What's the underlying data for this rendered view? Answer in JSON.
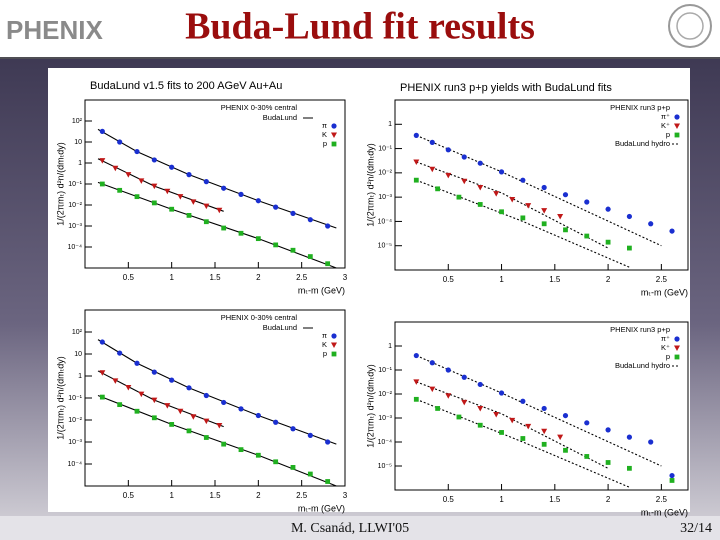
{
  "header": {
    "title": "Buda-Lund fit results",
    "logo": "PHENIX"
  },
  "footer": {
    "author": "M. Csanád, LLWI'05",
    "page": "32/14"
  },
  "chart_data": [
    {
      "type": "scatter",
      "title": "BudaLund v1.5 fits to 200 AGeV Au+Au",
      "x_label": "mₜ-m (GeV)",
      "y_label": "1/(2πmₜ) d²n/(dmₜdy)",
      "log_y": true,
      "xlim": [
        0,
        3
      ],
      "xticks": [
        0.5,
        1,
        1.5,
        2,
        2.5,
        3
      ],
      "ylim": [
        1e-05,
        1000
      ],
      "yticks": [
        {
          "value": 0.0001,
          "label": "10⁻⁴"
        },
        {
          "value": 0.001,
          "label": "10⁻³"
        },
        {
          "value": 0.01,
          "label": "10⁻²"
        },
        {
          "value": 0.1,
          "label": "10⁻¹"
        },
        1,
        10,
        {
          "value": 100,
          "label": "10²"
        }
      ],
      "legend_title": "PHENIX 0-30% central",
      "fit_name": "BudaLund",
      "fit_dashed": false,
      "series": [
        {
          "name": "π",
          "color": "#1a2fd0",
          "marker": "circle",
          "x": [
            0.2,
            0.4,
            0.6,
            0.8,
            1.0,
            1.2,
            1.4,
            1.6,
            1.8,
            2.0,
            2.2,
            2.4,
            2.6,
            2.8
          ],
          "values": [
            32,
            10,
            3.5,
            1.4,
            0.63,
            0.28,
            0.13,
            0.063,
            0.032,
            0.016,
            0.0079,
            0.004,
            0.002,
            0.001
          ]
        },
        {
          "name": "K",
          "color": "#c01818",
          "marker": "triangle-down",
          "x": [
            0.2,
            0.35,
            0.5,
            0.65,
            0.8,
            0.95,
            1.1,
            1.25,
            1.4,
            1.55
          ],
          "values": [
            1.3,
            0.56,
            0.28,
            0.14,
            0.079,
            0.045,
            0.025,
            0.014,
            0.0089,
            0.0056
          ]
        },
        {
          "name": "p",
          "color": "#20b020",
          "marker": "square",
          "x": [
            0.2,
            0.4,
            0.6,
            0.8,
            1.0,
            1.2,
            1.4,
            1.6,
            1.8,
            2.0,
            2.2,
            2.4,
            2.6,
            2.8
          ],
          "values": [
            0.1,
            0.05,
            0.025,
            0.0126,
            0.0063,
            0.0032,
            0.0016,
            0.0008,
            0.00045,
            0.00025,
            0.000126,
            7e-05,
            3.5e-05,
            1.6e-05
          ]
        }
      ],
      "fits": [
        {
          "x": [
            0.15,
            0.6,
            1.2,
            2.0,
            2.9
          ],
          "values": [
            40,
            3.5,
            0.28,
            0.016,
            0.0008
          ]
        },
        {
          "x": [
            0.15,
            0.8,
            1.6
          ],
          "values": [
            1.6,
            0.079,
            0.005
          ]
        },
        {
          "x": [
            0.15,
            1.0,
            2.0,
            2.9
          ],
          "values": [
            0.12,
            0.0063,
            0.00025,
            1e-05
          ]
        }
      ]
    },
    {
      "type": "scatter",
      "title": "PHENIX run3 p+p yields with BudaLund fits",
      "x_label": "mₜ-m (GeV)",
      "y_label": "1/(2πmₜ) d²n/(dmₜdy)",
      "log_y": true,
      "xlim": [
        0,
        2.75
      ],
      "xticks": [
        0.5,
        1,
        1.5,
        2,
        2.5
      ],
      "ylim": [
        1e-06,
        10
      ],
      "yticks": [
        {
          "value": 1e-05,
          "label": "10⁻⁵"
        },
        {
          "value": 0.0001,
          "label": "10⁻⁴"
        },
        {
          "value": 0.001,
          "label": "10⁻³"
        },
        {
          "value": 0.01,
          "label": "10⁻²"
        },
        {
          "value": 0.1,
          "label": "10⁻¹"
        },
        1
      ],
      "legend_title": "PHENIX run3 p+p",
      "fit_name": "BudaLund hydro",
      "fit_dashed": true,
      "series": [
        {
          "name": "π⁺",
          "color": "#1a2fd0",
          "marker": "circle",
          "x": [
            0.2,
            0.35,
            0.5,
            0.65,
            0.8,
            1.0,
            1.2,
            1.4,
            1.6,
            1.8,
            2.0,
            2.2,
            2.4,
            2.6
          ],
          "values": [
            0.35,
            0.18,
            0.089,
            0.045,
            0.025,
            0.011,
            0.005,
            0.0025,
            0.00126,
            0.00063,
            0.00032,
            0.00016,
            8e-05,
            4e-05
          ]
        },
        {
          "name": "K⁺",
          "color": "#c01818",
          "marker": "triangle-down",
          "x": [
            0.2,
            0.35,
            0.5,
            0.65,
            0.8,
            0.95,
            1.1,
            1.25,
            1.4,
            1.55
          ],
          "values": [
            0.028,
            0.014,
            0.0079,
            0.0045,
            0.0025,
            0.0014,
            0.0008,
            0.00045,
            0.00028,
            0.00016
          ]
        },
        {
          "name": "p",
          "color": "#20b020",
          "marker": "square",
          "x": [
            0.2,
            0.4,
            0.6,
            0.8,
            1.0,
            1.2,
            1.4,
            1.6,
            1.8,
            2.0,
            2.2
          ],
          "values": [
            0.005,
            0.0022,
            0.001,
            0.0005,
            0.00025,
            0.00014,
            8e-05,
            4.5e-05,
            2.5e-05,
            1.4e-05,
            8e-06
          ]
        }
      ],
      "fits": [
        {
          "x": [
            0.2,
            1.0,
            2.5
          ],
          "values": [
            0.35,
            0.011,
            1e-05
          ]
        },
        {
          "x": [
            0.2,
            1.0,
            2.0
          ],
          "values": [
            0.028,
            0.0015,
            8e-06
          ]
        },
        {
          "x": [
            0.2,
            1.2,
            2.2
          ],
          "values": [
            0.005,
            0.0001,
            1.3e-06
          ]
        }
      ]
    },
    {
      "type": "scatter",
      "x_label": "mₜ-m (GeV)",
      "y_label": "1/(2πmₜ) d²n/(dmₜdy)",
      "log_y": true,
      "xlim": [
        0,
        3
      ],
      "xticks": [
        0.5,
        1,
        1.5,
        2,
        2.5,
        3
      ],
      "ylim": [
        1e-05,
        1000
      ],
      "yticks": [
        {
          "value": 0.0001,
          "label": "10⁻⁴"
        },
        {
          "value": 0.001,
          "label": "10⁻³"
        },
        {
          "value": 0.01,
          "label": "10⁻²"
        },
        {
          "value": 0.1,
          "label": "10⁻¹"
        },
        1,
        10,
        {
          "value": 100,
          "label": "10²"
        }
      ],
      "legend_title": "PHENIX 0-30% central",
      "fit_name": "BudaLund",
      "fit_dashed": false,
      "series": [
        {
          "name": "π",
          "color": "#1a2fd0",
          "marker": "circle",
          "x": [
            0.2,
            0.4,
            0.6,
            0.8,
            1.0,
            1.2,
            1.4,
            1.6,
            1.8,
            2.0,
            2.2,
            2.4,
            2.6,
            2.8
          ],
          "values": [
            35,
            11,
            3.8,
            1.5,
            0.65,
            0.29,
            0.13,
            0.063,
            0.032,
            0.016,
            0.0079,
            0.004,
            0.002,
            0.001
          ]
        },
        {
          "name": "K",
          "color": "#c01818",
          "marker": "triangle-down",
          "x": [
            0.2,
            0.35,
            0.5,
            0.65,
            0.8,
            0.95,
            1.1,
            1.25,
            1.4,
            1.55
          ],
          "values": [
            1.4,
            0.6,
            0.3,
            0.15,
            0.08,
            0.045,
            0.025,
            0.014,
            0.0089,
            0.0056
          ]
        },
        {
          "name": "p",
          "color": "#20b020",
          "marker": "square",
          "x": [
            0.2,
            0.4,
            0.6,
            0.8,
            1.0,
            1.2,
            1.4,
            1.6,
            1.8,
            2.0,
            2.2,
            2.4,
            2.6,
            2.8
          ],
          "values": [
            0.11,
            0.05,
            0.025,
            0.0126,
            0.0063,
            0.0032,
            0.0016,
            0.0008,
            0.00045,
            0.00025,
            0.000126,
            7e-05,
            3.5e-05,
            1.6e-05
          ]
        }
      ],
      "fits": [
        {
          "x": [
            0.15,
            0.6,
            1.2,
            2.0,
            2.9
          ],
          "values": [
            45,
            3.8,
            0.29,
            0.016,
            0.0008
          ]
        },
        {
          "x": [
            0.15,
            0.8,
            1.6
          ],
          "values": [
            1.7,
            0.08,
            0.005
          ]
        },
        {
          "x": [
            0.15,
            1.0,
            2.0,
            2.9
          ],
          "values": [
            0.13,
            0.0063,
            0.00025,
            1e-05
          ]
        }
      ]
    },
    {
      "type": "scatter",
      "x_label": "mₜ-m (GeV)",
      "y_label": "1/(2πmₜ) d²n/(dmₜdy)",
      "log_y": true,
      "xlim": [
        0,
        2.75
      ],
      "xticks": [
        0.5,
        1,
        1.5,
        2,
        2.5
      ],
      "ylim": [
        1e-06,
        10
      ],
      "yticks": [
        {
          "value": 1e-05,
          "label": "10⁻⁵"
        },
        {
          "value": 0.0001,
          "label": "10⁻⁴"
        },
        {
          "value": 0.001,
          "label": "10⁻³"
        },
        {
          "value": 0.01,
          "label": "10⁻²"
        },
        {
          "value": 0.1,
          "label": "10⁻¹"
        },
        1
      ],
      "legend_title": "PHENIX run3 p+p",
      "fit_name": "BudaLund hydro",
      "fit_dashed": true,
      "series": [
        {
          "name": "π⁺",
          "color": "#1a2fd0",
          "marker": "circle",
          "x": [
            0.2,
            0.35,
            0.5,
            0.65,
            0.8,
            1.0,
            1.2,
            1.4,
            1.6,
            1.8,
            2.0,
            2.2,
            2.4,
            2.6
          ],
          "values": [
            0.4,
            0.2,
            0.1,
            0.05,
            0.025,
            0.011,
            0.005,
            0.0025,
            0.00126,
            0.00063,
            0.00032,
            0.00016,
            0.0001,
            4e-06
          ]
        },
        {
          "name": "K⁺",
          "color": "#c01818",
          "marker": "triangle-down",
          "x": [
            0.2,
            0.35,
            0.5,
            0.65,
            0.8,
            0.95,
            1.1,
            1.25,
            1.4,
            1.55
          ],
          "values": [
            0.032,
            0.016,
            0.0085,
            0.0045,
            0.0025,
            0.0014,
            0.0008,
            0.00045,
            0.00028,
            0.00016
          ]
        },
        {
          "name": "p",
          "color": "#20b020",
          "marker": "square",
          "x": [
            0.2,
            0.4,
            0.6,
            0.8,
            1.0,
            1.2,
            1.4,
            1.6,
            1.8,
            2.0,
            2.2,
            2.6
          ],
          "values": [
            0.006,
            0.0025,
            0.0011,
            0.0005,
            0.00025,
            0.00014,
            8e-05,
            4.5e-05,
            2.5e-05,
            1.4e-05,
            8e-06,
            2.5e-06
          ]
        }
      ],
      "fits": [
        {
          "x": [
            0.2,
            1.0,
            2.5
          ],
          "values": [
            0.4,
            0.011,
            1e-05
          ]
        },
        {
          "x": [
            0.2,
            1.0,
            2.0
          ],
          "values": [
            0.032,
            0.0015,
            8e-06
          ]
        },
        {
          "x": [
            0.2,
            1.2,
            2.2
          ],
          "values": [
            0.006,
            0.0001,
            1.3e-06
          ]
        }
      ]
    }
  ]
}
